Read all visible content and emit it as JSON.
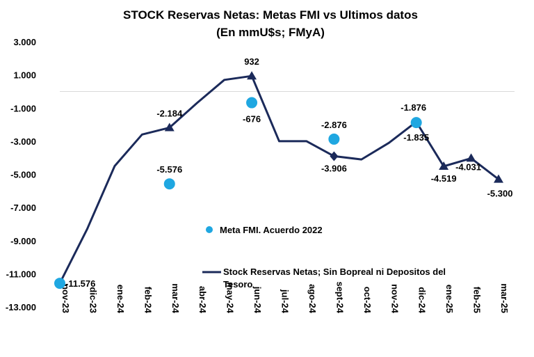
{
  "chart_data": {
    "type": "line",
    "title": "STOCK  Reservas Netas: Metas FMI vs Ultimos datos",
    "subtitle": "(En mmU$s; FMyA)",
    "categories": [
      "nov-23",
      "dic-23",
      "ene-24",
      "feb-24",
      "mar-24",
      "abr-24",
      "may-24",
      "jun-24",
      "jul-24",
      "ago-24",
      "sept-24",
      "oct-24",
      "nov-24",
      "dic-24",
      "ene-25",
      "feb-25",
      "mar-25"
    ],
    "ylim": [
      -13000,
      3000
    ],
    "yticks": [
      3000,
      1000,
      -1000,
      -3000,
      -5000,
      -7000,
      -9000,
      -11000,
      -13000
    ],
    "ytick_labels": [
      "3.000",
      "1.000",
      "-1.000",
      "-3.000",
      "-5.000",
      "-7.000",
      "-9.000",
      "-11.000",
      "-13.000"
    ],
    "series": [
      {
        "name": "Stock Reservas Netas; Sin Bopreal ni Depositos del Tesoro",
        "legend_line1": "Stock Reservas Netas; Sin Bopreal ni Depositos del",
        "legend_line2": "Tesoro",
        "color": "#1b2a5a",
        "values": [
          -11576,
          -8300,
          -4500,
          -2600,
          -2184,
          -700,
          700,
          932,
          -3000,
          -3000,
          -3906,
          -4100,
          -3100,
          -1835,
          -4519,
          -4031,
          -5300
        ]
      },
      {
        "name": "Meta FMI. Acuerdo 2022",
        "color": "#1fa7e1",
        "points": [
          {
            "category": "nov-23",
            "value": -11576
          },
          {
            "category": "mar-24",
            "value": -5576
          },
          {
            "category": "jun-24",
            "value": -676
          },
          {
            "category": "sept-24",
            "value": -2876
          },
          {
            "category": "dic-24",
            "value": -1876
          }
        ]
      }
    ],
    "line_labels": [
      {
        "category": "nov-23",
        "text": "-11.576"
      },
      {
        "category": "mar-24",
        "text": "-2.184"
      },
      {
        "category": "jun-24",
        "text": "932"
      },
      {
        "category": "sept-24",
        "text": "-3.906"
      },
      {
        "category": "dic-24",
        "text": "-1.835"
      },
      {
        "category": "ene-25",
        "text": "-4.519"
      },
      {
        "category": "feb-25",
        "text": "-4.031"
      },
      {
        "category": "mar-25",
        "text": "-5.300"
      }
    ],
    "goal_labels": [
      {
        "category": "mar-24",
        "text": "-5.576"
      },
      {
        "category": "jun-24",
        "text": "-676"
      },
      {
        "category": "sept-24",
        "text": "-2.876"
      },
      {
        "category": "dic-24",
        "text": "-1.876"
      }
    ],
    "legend_position": "center"
  }
}
